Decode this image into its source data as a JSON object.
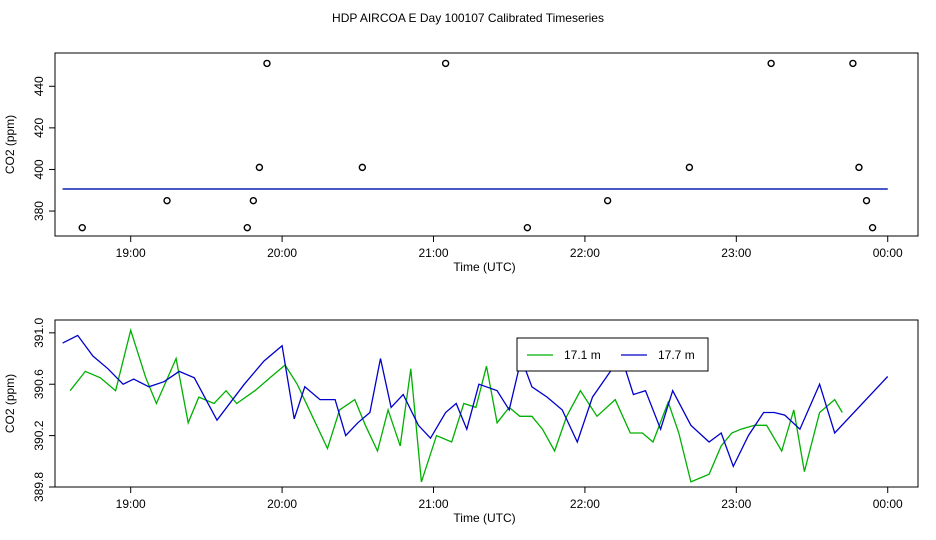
{
  "title": "HDP AIRCOA E  Day 100107  Calibrated Timeseries",
  "colors": {
    "green": "#00b000",
    "blue": "#0000cc",
    "axis": "#000000"
  },
  "chart_data": [
    {
      "type": "line",
      "xlabel": "Time (UTC)",
      "ylabel": "CO2 (ppm)",
      "x_tick_labels": [
        "19:00",
        "20:00",
        "21:00",
        "22:00",
        "23:00",
        "00:00"
      ],
      "x_tick_hours": [
        19,
        20,
        21,
        22,
        23,
        24
      ],
      "xlim": [
        18.5,
        24.2
      ],
      "y_ticks": [
        380,
        400,
        420,
        440
      ],
      "y_tick_labels": [
        "380",
        "400",
        "420",
        "440"
      ],
      "ylim": [
        368,
        456
      ],
      "calibration_points": [
        [
          18.68,
          372
        ],
        [
          19.24,
          385
        ],
        [
          19.77,
          372
        ],
        [
          19.81,
          385
        ],
        [
          19.85,
          401
        ],
        [
          19.9,
          451
        ],
        [
          20.53,
          401
        ],
        [
          21.08,
          451
        ],
        [
          21.62,
          372
        ],
        [
          22.15,
          385
        ],
        [
          22.69,
          401
        ],
        [
          23.23,
          451
        ],
        [
          23.77,
          451
        ],
        [
          23.81,
          401
        ],
        [
          23.86,
          385
        ],
        [
          23.9,
          372
        ]
      ],
      "series": [
        {
          "color": "green",
          "x": [
            18.55,
            24.0
          ],
          "values": [
            390.6,
            390.6
          ]
        },
        {
          "color": "blue",
          "x": [
            18.55,
            24.0
          ],
          "values": [
            390.6,
            390.6
          ]
        }
      ]
    },
    {
      "type": "line",
      "xlabel": "Time (UTC)",
      "ylabel": "CO2 (ppm)",
      "x_tick_labels": [
        "19:00",
        "20:00",
        "21:00",
        "22:00",
        "23:00",
        "00:00"
      ],
      "x_tick_hours": [
        19,
        20,
        21,
        22,
        23,
        24
      ],
      "xlim": [
        18.5,
        24.2
      ],
      "y_ticks": [
        389.8,
        390.2,
        390.6,
        391.0
      ],
      "y_tick_labels": [
        "389.8",
        "390.2",
        "390.6",
        "391.0"
      ],
      "ylim": [
        389.8,
        391.1
      ],
      "legend_position": "top-center",
      "series": [
        {
          "name": "17.1 m",
          "color": "green",
          "x": [
            18.6,
            18.7,
            18.8,
            18.9,
            19.0,
            19.1,
            19.17,
            19.3,
            19.38,
            19.45,
            19.55,
            19.63,
            19.7,
            19.82,
            19.92,
            20.02,
            20.1,
            20.22,
            20.3,
            20.38,
            20.48,
            20.55,
            20.63,
            20.7,
            20.78,
            20.85,
            20.92,
            21.02,
            21.12,
            21.2,
            21.28,
            21.35,
            21.42,
            21.5,
            21.57,
            21.65,
            21.72,
            21.8,
            21.88,
            21.97,
            22.08,
            22.2,
            22.3,
            22.38,
            22.45,
            22.55,
            22.62,
            22.7,
            22.82,
            22.9,
            22.97,
            23.03,
            23.12,
            23.2,
            23.3,
            23.38,
            23.45,
            23.55,
            23.65,
            23.7
          ],
          "values": [
            390.55,
            390.7,
            390.65,
            390.55,
            391.02,
            390.65,
            390.45,
            390.8,
            390.3,
            390.5,
            390.45,
            390.55,
            390.45,
            390.55,
            390.65,
            390.75,
            390.6,
            390.3,
            390.1,
            390.4,
            390.48,
            390.28,
            390.08,
            390.4,
            390.12,
            390.72,
            389.84,
            390.2,
            390.15,
            390.45,
            390.42,
            390.74,
            390.3,
            390.42,
            390.35,
            390.35,
            390.25,
            390.08,
            390.35,
            390.55,
            390.35,
            390.48,
            390.22,
            390.22,
            390.15,
            390.46,
            390.22,
            389.84,
            389.9,
            390.12,
            390.22,
            390.25,
            390.28,
            390.28,
            390.08,
            390.4,
            389.92,
            390.38,
            390.48,
            390.38
          ]
        },
        {
          "name": "17.7 m",
          "color": "blue",
          "x": [
            18.55,
            18.65,
            18.75,
            18.85,
            18.95,
            19.02,
            19.12,
            19.22,
            19.32,
            19.42,
            19.57,
            19.75,
            19.88,
            20.0,
            20.08,
            20.15,
            20.25,
            20.35,
            20.42,
            20.5,
            20.58,
            20.65,
            20.72,
            20.8,
            20.9,
            20.98,
            21.08,
            21.15,
            21.22,
            21.3,
            21.42,
            21.5,
            21.58,
            21.65,
            21.75,
            21.85,
            21.95,
            22.05,
            22.18,
            22.25,
            22.32,
            22.4,
            22.5,
            22.58,
            22.7,
            22.82,
            22.9,
            22.98,
            23.08,
            23.18,
            23.25,
            23.32,
            23.42,
            23.55,
            23.65,
            24.0
          ],
          "values": [
            390.92,
            390.98,
            390.82,
            390.72,
            390.6,
            390.64,
            390.58,
            390.62,
            390.7,
            390.65,
            390.32,
            390.6,
            390.78,
            390.9,
            390.33,
            390.58,
            390.48,
            390.48,
            390.2,
            390.3,
            390.38,
            390.8,
            390.42,
            390.52,
            390.28,
            390.18,
            390.38,
            390.45,
            390.25,
            390.6,
            390.55,
            390.4,
            390.8,
            390.58,
            390.5,
            390.4,
            390.15,
            390.5,
            390.72,
            390.78,
            390.52,
            390.55,
            390.25,
            390.55,
            390.28,
            390.15,
            390.22,
            389.96,
            390.2,
            390.38,
            390.38,
            390.36,
            390.25,
            390.6,
            390.22,
            390.66
          ]
        }
      ]
    }
  ]
}
